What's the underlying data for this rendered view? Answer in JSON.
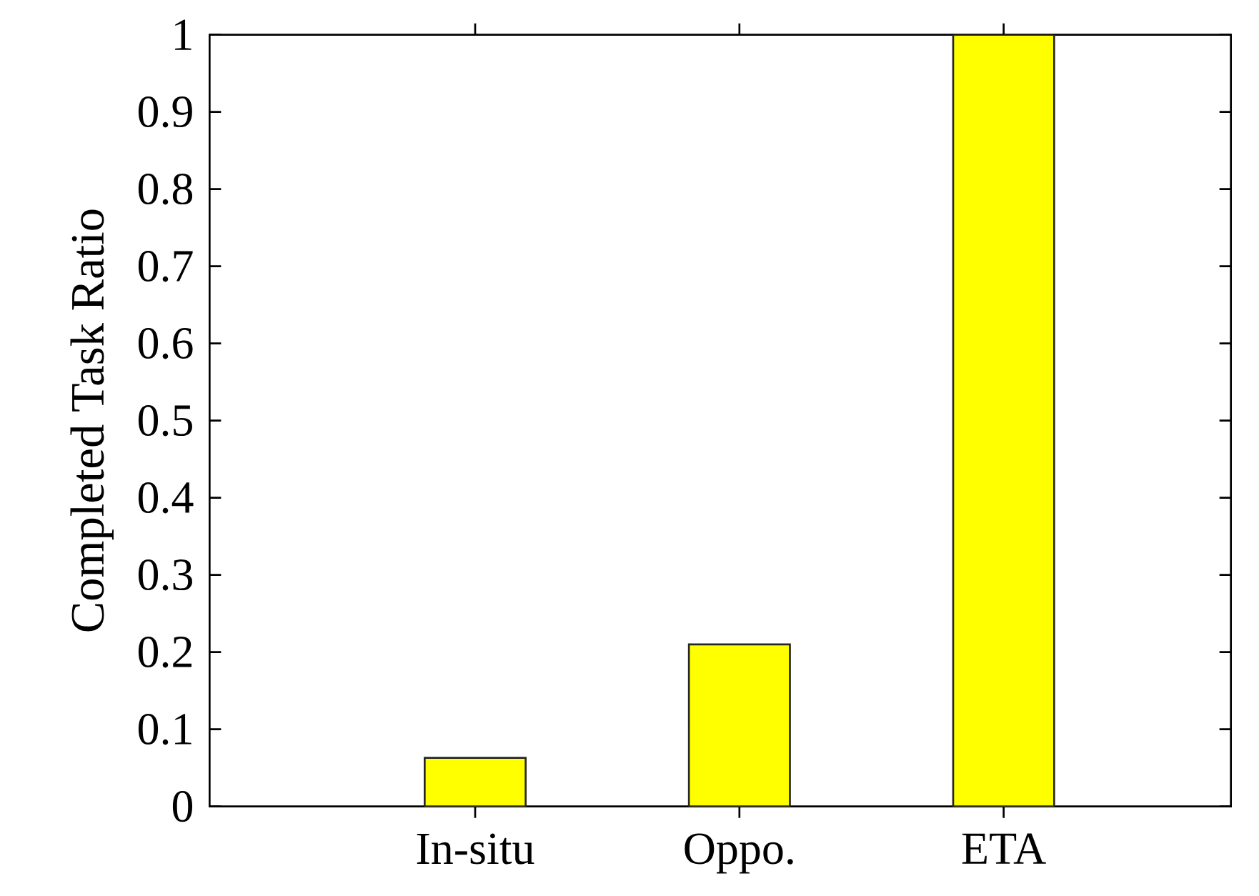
{
  "chart_data": {
    "type": "bar",
    "ylabel": "Completed Task Ratio",
    "categories": [
      "In-situ",
      "Oppo.",
      "ETA"
    ],
    "values": [
      0.063,
      0.21,
      1
    ],
    "color": "#ffff00",
    "ylim": [
      0,
      1
    ],
    "yticks": [
      0,
      0.1,
      0.2,
      0.3,
      0.4,
      0.5,
      0.6,
      0.7,
      0.8,
      0.9,
      1
    ]
  }
}
